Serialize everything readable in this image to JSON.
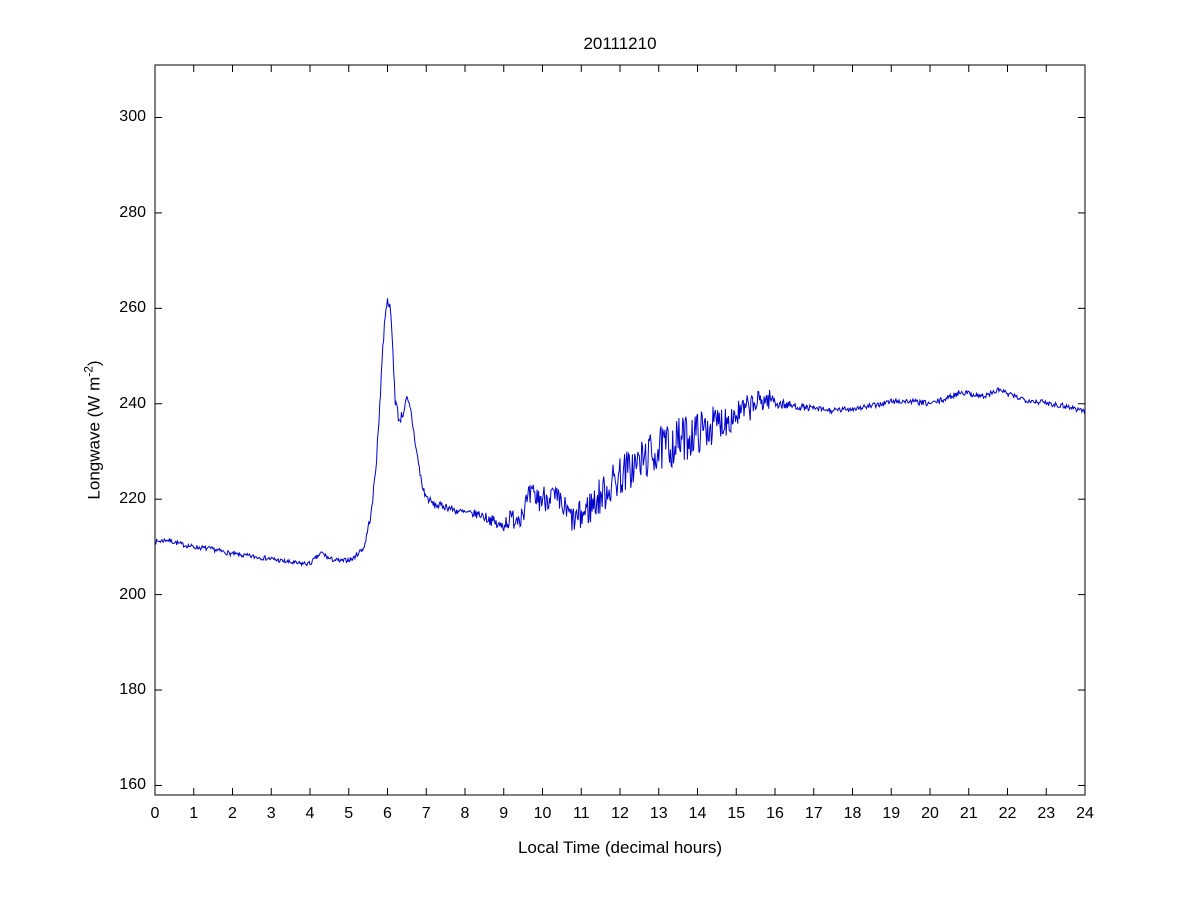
{
  "chart_data": {
    "type": "line",
    "title": "20111210",
    "xlabel": "Local Time (decimal hours)",
    "ylabel": {
      "pre": "Longwave (W m",
      "sup": "-2",
      "post": ")"
    },
    "xlim": [
      0,
      24
    ],
    "ylim": [
      158,
      311
    ],
    "xticks": [
      0,
      1,
      2,
      3,
      4,
      5,
      6,
      7,
      8,
      9,
      10,
      11,
      12,
      13,
      14,
      15,
      16,
      17,
      18,
      19,
      20,
      21,
      22,
      23,
      24
    ],
    "yticks": [
      160,
      180,
      200,
      220,
      240,
      260,
      280,
      300
    ],
    "grid": false,
    "legend": null,
    "line_color": "#0000CC",
    "axis_color": "#000000",
    "series_name": "longwave-irradiance",
    "keypoints_format": [
      "x_hours",
      "y_wm2",
      "noise_amplitude_wm2"
    ],
    "keypoints": [
      [
        0.0,
        211.0,
        0.5
      ],
      [
        0.3,
        211.5,
        0.5
      ],
      [
        0.7,
        210.5,
        0.5
      ],
      [
        1.0,
        210.0,
        0.5
      ],
      [
        1.5,
        209.5,
        0.5
      ],
      [
        2.0,
        208.5,
        0.5
      ],
      [
        2.5,
        208.0,
        0.5
      ],
      [
        3.0,
        207.5,
        0.5
      ],
      [
        3.3,
        207.0,
        0.5
      ],
      [
        3.7,
        206.5,
        0.5
      ],
      [
        4.0,
        206.5,
        0.5
      ],
      [
        4.3,
        208.8,
        0.5
      ],
      [
        4.5,
        207.5,
        0.5
      ],
      [
        4.8,
        207.0,
        0.5
      ],
      [
        5.1,
        207.5,
        0.5
      ],
      [
        5.4,
        210.0,
        0.6
      ],
      [
        5.6,
        218.0,
        1.0
      ],
      [
        5.75,
        232.0,
        1.5
      ],
      [
        5.85,
        248.0,
        1.5
      ],
      [
        5.95,
        260.0,
        1.0
      ],
      [
        6.0,
        261.5,
        0.8
      ],
      [
        6.05,
        261.0,
        0.8
      ],
      [
        6.1,
        257.0,
        1.0
      ],
      [
        6.2,
        241.0,
        1.5
      ],
      [
        6.3,
        236.5,
        1.0
      ],
      [
        6.4,
        238.0,
        1.0
      ],
      [
        6.5,
        241.0,
        0.8
      ],
      [
        6.6,
        238.5,
        1.0
      ],
      [
        6.75,
        230.0,
        1.0
      ],
      [
        6.9,
        222.5,
        1.0
      ],
      [
        7.0,
        220.5,
        0.8
      ],
      [
        7.2,
        218.8,
        0.8
      ],
      [
        7.5,
        218.5,
        0.8
      ],
      [
        7.8,
        217.5,
        0.8
      ],
      [
        8.1,
        217.0,
        0.8
      ],
      [
        8.4,
        216.8,
        1.0
      ],
      [
        8.7,
        215.5,
        1.2
      ],
      [
        8.9,
        214.2,
        1.5
      ],
      [
        9.1,
        215.5,
        2.0
      ],
      [
        9.4,
        216.5,
        2.5
      ],
      [
        9.7,
        220.5,
        3.0
      ],
      [
        10.0,
        220.0,
        3.0
      ],
      [
        10.2,
        221.0,
        3.0
      ],
      [
        10.5,
        218.5,
        3.0
      ],
      [
        10.8,
        215.5,
        3.0
      ],
      [
        11.0,
        216.5,
        3.5
      ],
      [
        11.3,
        219.0,
        4.0
      ],
      [
        11.6,
        221.5,
        4.0
      ],
      [
        12.0,
        225.0,
        4.5
      ],
      [
        12.4,
        227.0,
        4.5
      ],
      [
        12.8,
        229.5,
        4.5
      ],
      [
        13.2,
        231.0,
        5.0
      ],
      [
        13.6,
        232.5,
        5.0
      ],
      [
        14.0,
        234.0,
        4.5
      ],
      [
        14.4,
        235.5,
        4.0
      ],
      [
        14.8,
        237.0,
        3.5
      ],
      [
        15.2,
        238.5,
        3.0
      ],
      [
        15.6,
        240.5,
        2.5
      ],
      [
        15.9,
        241.0,
        2.0
      ],
      [
        16.1,
        240.0,
        1.2
      ],
      [
        16.5,
        239.5,
        0.8
      ],
      [
        17.0,
        239.0,
        0.6
      ],
      [
        17.5,
        238.5,
        0.6
      ],
      [
        18.0,
        239.0,
        0.6
      ],
      [
        18.5,
        239.5,
        0.6
      ],
      [
        19.0,
        240.5,
        0.6
      ],
      [
        19.5,
        240.5,
        0.6
      ],
      [
        20.0,
        240.0,
        0.6
      ],
      [
        20.4,
        241.0,
        0.6
      ],
      [
        20.8,
        242.5,
        0.6
      ],
      [
        21.1,
        242.0,
        0.6
      ],
      [
        21.4,
        241.5,
        0.6
      ],
      [
        21.8,
        243.0,
        0.6
      ],
      [
        22.0,
        242.0,
        0.6
      ],
      [
        22.5,
        240.8,
        0.6
      ],
      [
        23.0,
        240.2,
        0.6
      ],
      [
        23.5,
        239.5,
        0.6
      ],
      [
        24.0,
        238.5,
        0.6
      ]
    ]
  }
}
